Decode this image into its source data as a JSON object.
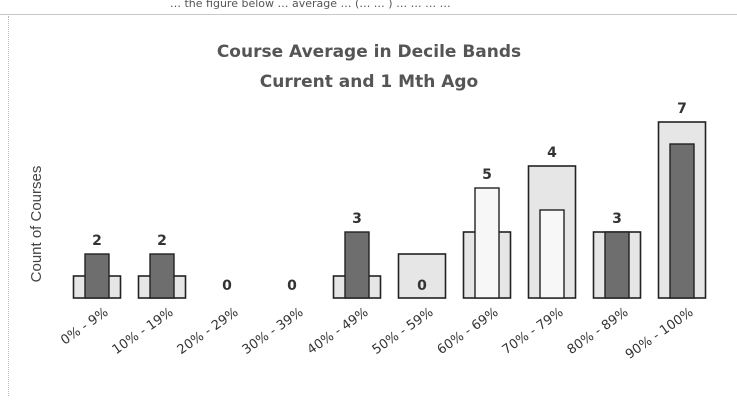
{
  "header": {
    "partial_text": "… the figure below … average … (… … ) … … … …"
  },
  "chart_data": {
    "type": "bar",
    "title": "Course Average in Decile Bands",
    "subtitle": "Current and 1 Mth Ago",
    "xlabel": "",
    "ylabel": "Count of Courses",
    "ylim": [
      0,
      8
    ],
    "grid": false,
    "legend": "none",
    "categories": [
      "0% - 9%",
      "10% - 19%",
      "20% - 29%",
      "30% - 39%",
      "40% - 49%",
      "50% - 59%",
      "60% - 69%",
      "70% - 79%",
      "80% - 89%",
      "90% - 100%"
    ],
    "series": [
      {
        "values": [
          1,
          1,
          0,
          0,
          1,
          2,
          3,
          6,
          3,
          8
        ]
      },
      {
        "values": [
          2,
          2,
          0,
          0,
          3,
          0,
          5,
          4,
          3,
          7
        ]
      }
    ],
    "data_labels": [
      "2",
      "2",
      "0",
      "0",
      "3",
      "0",
      "5",
      "4",
      "3",
      "7"
    ],
    "colors": {
      "outer_fill": "#e6e6e6",
      "inner_fill_dark": "#6e6e6e",
      "inner_fill_light": "#f7f7f7",
      "edge": "#222222"
    }
  }
}
